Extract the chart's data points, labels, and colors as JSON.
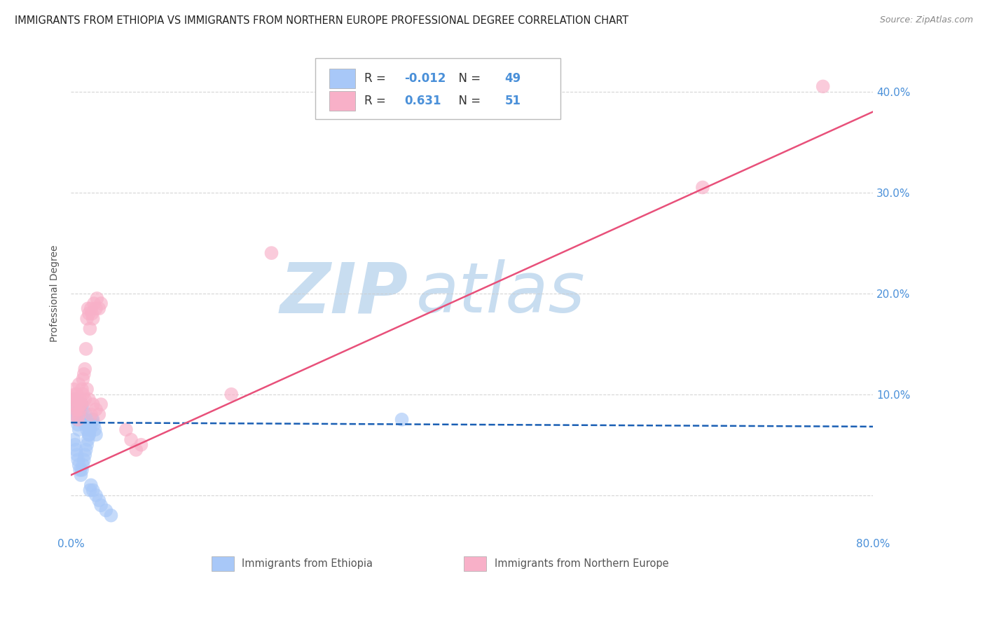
{
  "title": "IMMIGRANTS FROM ETHIOPIA VS IMMIGRANTS FROM NORTHERN EUROPE PROFESSIONAL DEGREE CORRELATION CHART",
  "source": "Source: ZipAtlas.com",
  "ylabel": "Professional Degree",
  "blue_label": "Immigrants from Ethiopia",
  "pink_label": "Immigrants from Northern Europe",
  "blue_R": -0.012,
  "blue_N": 49,
  "pink_R": 0.631,
  "pink_N": 51,
  "xlim": [
    0.0,
    0.8
  ],
  "ylim": [
    -0.04,
    0.44
  ],
  "blue_scatter_x": [
    0.002,
    0.003,
    0.004,
    0.005,
    0.006,
    0.007,
    0.008,
    0.009,
    0.01,
    0.011,
    0.012,
    0.013,
    0.014,
    0.015,
    0.016,
    0.017,
    0.018,
    0.019,
    0.02,
    0.021,
    0.022,
    0.023,
    0.024,
    0.025,
    0.003,
    0.004,
    0.005,
    0.006,
    0.007,
    0.008,
    0.009,
    0.01,
    0.011,
    0.012,
    0.013,
    0.014,
    0.015,
    0.016,
    0.017,
    0.018,
    0.019,
    0.02,
    0.022,
    0.025,
    0.028,
    0.03,
    0.035,
    0.04,
    0.33
  ],
  "blue_scatter_y": [
    0.085,
    0.09,
    0.095,
    0.08,
    0.075,
    0.07,
    0.065,
    0.085,
    0.08,
    0.09,
    0.085,
    0.075,
    0.07,
    0.08,
    0.065,
    0.07,
    0.06,
    0.065,
    0.07,
    0.075,
    0.075,
    0.07,
    0.065,
    0.06,
    0.055,
    0.05,
    0.045,
    0.04,
    0.035,
    0.03,
    0.025,
    0.02,
    0.025,
    0.03,
    0.035,
    0.04,
    0.045,
    0.05,
    0.055,
    0.06,
    0.005,
    0.01,
    0.005,
    0.0,
    -0.005,
    -0.01,
    -0.015,
    -0.02,
    0.075
  ],
  "pink_scatter_x": [
    0.002,
    0.003,
    0.004,
    0.005,
    0.006,
    0.007,
    0.008,
    0.009,
    0.01,
    0.011,
    0.012,
    0.013,
    0.014,
    0.015,
    0.016,
    0.017,
    0.018,
    0.019,
    0.02,
    0.021,
    0.022,
    0.023,
    0.025,
    0.026,
    0.028,
    0.03,
    0.003,
    0.004,
    0.005,
    0.006,
    0.007,
    0.008,
    0.009,
    0.01,
    0.012,
    0.014,
    0.016,
    0.018,
    0.02,
    0.022,
    0.025,
    0.028,
    0.03,
    0.16,
    0.055,
    0.06,
    0.065,
    0.07,
    0.63,
    0.75,
    0.2
  ],
  "pink_scatter_y": [
    0.095,
    0.105,
    0.1,
    0.095,
    0.1,
    0.085,
    0.11,
    0.095,
    0.09,
    0.105,
    0.115,
    0.12,
    0.125,
    0.145,
    0.175,
    0.185,
    0.18,
    0.165,
    0.185,
    0.18,
    0.175,
    0.19,
    0.185,
    0.195,
    0.185,
    0.19,
    0.08,
    0.09,
    0.085,
    0.095,
    0.075,
    0.08,
    0.085,
    0.09,
    0.1,
    0.095,
    0.105,
    0.095,
    0.08,
    0.09,
    0.085,
    0.08,
    0.09,
    0.1,
    0.065,
    0.055,
    0.045,
    0.05,
    0.305,
    0.405,
    0.24
  ],
  "blue_color": "#a8c8f8",
  "pink_color": "#f8b0c8",
  "blue_line_color": "#1a5fb4",
  "pink_line_color": "#e8507a",
  "blue_line_y0": 0.072,
  "blue_line_y1": 0.068,
  "pink_line_y0": 0.02,
  "pink_line_y1": 0.38,
  "grid_color": "#cccccc",
  "background_color": "#ffffff",
  "title_color": "#222222",
  "right_axis_color": "#4a90d9",
  "watermark_zip_color": "#c8ddf0",
  "watermark_atlas_color": "#c8ddf0",
  "title_fontsize": 10.5,
  "source_fontsize": 9,
  "axis_label_fontsize": 10
}
